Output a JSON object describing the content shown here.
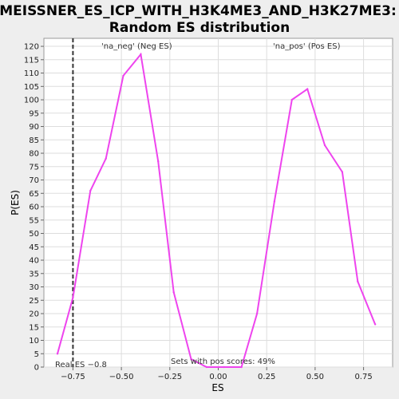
{
  "chart_data": {
    "type": "line",
    "title_line1": "MEISSNER_ES_ICP_WITH_H3K4ME3_AND_H3K27ME3:",
    "title_line2": "Random ES distribution",
    "xlabel": "ES",
    "ylabel": "P(ES)",
    "xlim": [
      -0.9,
      0.9
    ],
    "ylim": [
      0,
      123
    ],
    "x_ticks": [
      -0.75,
      -0.5,
      -0.25,
      0.0,
      0.25,
      0.5,
      0.75
    ],
    "x_tick_labels": [
      "−0.75",
      "−0.50",
      "−0.25",
      "0.00",
      "0.25",
      "0.50",
      "0.75"
    ],
    "y_ticks": [
      0,
      5,
      10,
      15,
      20,
      25,
      30,
      35,
      40,
      45,
      50,
      55,
      60,
      65,
      70,
      75,
      80,
      85,
      90,
      95,
      100,
      105,
      110,
      115,
      120
    ],
    "grid": true,
    "line_color": "#ee44ee",
    "series": [
      {
        "x": [
          -0.83,
          -0.75,
          -0.66,
          -0.58,
          -0.49,
          -0.4,
          -0.31,
          -0.23,
          -0.14,
          -0.06,
          0.03,
          0.12,
          0.2,
          0.29,
          0.38,
          0.46,
          0.55,
          0.64,
          0.72,
          0.81
        ],
        "y": [
          5,
          26,
          66,
          78,
          109,
          117,
          77,
          28,
          3,
          0,
          0,
          0,
          20,
          62,
          100,
          104,
          83,
          73,
          32,
          16
        ]
      }
    ],
    "real_es": -0.75,
    "annotations": {
      "neg_label": "'na_neg' (Neg ES)",
      "pos_label": "'na_pos' (Pos ES)",
      "neg_color": "#3333cc",
      "pos_color": "#dd3333",
      "real_es_label": "Real ES −0.8",
      "pos_scores_label": "Sets with pos scores: 49%"
    }
  }
}
